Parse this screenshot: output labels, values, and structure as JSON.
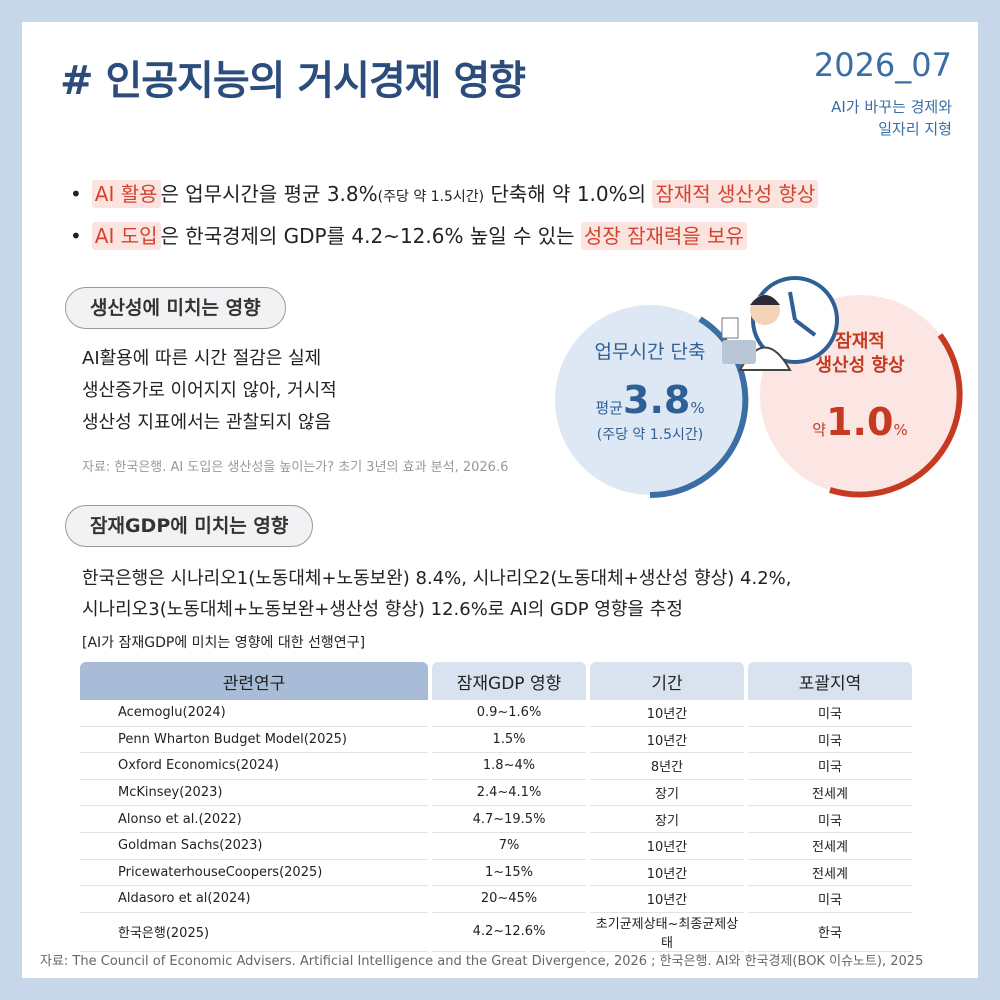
{
  "header": {
    "title": "# 인공지능의 거시경제 영향",
    "issue": "2026_07",
    "subtitle": [
      "AI가 바꾸는 경제와",
      "일자리 지형"
    ]
  },
  "summary": [
    [
      {
        "text": "AI 활용",
        "style": "highlight"
      },
      {
        "text": "은 업무시간을 평균 3.8%",
        "style": "plain"
      },
      {
        "text": "(주당 약 1.5시간)",
        "style": "small"
      },
      {
        "text": " 단축해 약 1.0%의 ",
        "style": "plain"
      },
      {
        "text": "잠재적 생산성 향상",
        "style": "highlight"
      }
    ],
    [
      {
        "text": "AI 도입",
        "style": "highlight"
      },
      {
        "text": "은 한국경제의 GDP를 4.2~12.6% 높일 수 있는 ",
        "style": "plain"
      },
      {
        "text": "성장 잠재력을 보유",
        "style": "highlight"
      }
    ]
  ],
  "productivity": {
    "label": "생산성에 미치는 영향",
    "body": [
      "AI활용에 따른 시간 절감은 실제",
      "생산증가로 이어지지 않아, 거시적",
      "생산성 지표에서는 관찰되지 않음"
    ],
    "source": "자료: 한국은행. AI 도입은 생산성을 높이는가? 초기 3년의 효과 분석, 2026.6"
  },
  "badges": [
    {
      "title": [
        "업무시간 단축"
      ],
      "prefix": "평균",
      "value": "3.8",
      "unit": "%",
      "note": "(주당 약 1.5시간)"
    },
    {
      "title": [
        "잠재적",
        "생산성 향상"
      ],
      "prefix": "약",
      "value": "1.0",
      "unit": "%"
    }
  ],
  "gdp": {
    "label": "잠재GDP에 미치는 영향",
    "body": [
      "한국은행은 시나리오1(노동대체+노동보완) 8.4%, 시나리오2(노동대체+생산성 향상) 4.2%,",
      "시나리오3(노동대체+노동보완+생산성 향상) 12.6%로 AI의 GDP 영향을 추정"
    ],
    "caption": "[AI가 잠재GDP에 미치는 영향에 대한 선행연구]"
  },
  "table": {
    "headers": [
      "관련연구",
      "잠재GDP 영향",
      "기간",
      "포괄지역"
    ],
    "rows": [
      [
        "Acemoglu(2024)",
        "0.9~1.6%",
        "10년간",
        "미국"
      ],
      [
        "Penn Wharton Budget Model(2025)",
        "1.5%",
        "10년간",
        "미국"
      ],
      [
        "Oxford Economics(2024)",
        "1.8~4%",
        "8년간",
        "미국"
      ],
      [
        "McKinsey(2023)",
        "2.4~4.1%",
        "장기",
        "전세계"
      ],
      [
        "Alonso et al.(2022)",
        "4.7~19.5%",
        "장기",
        "미국"
      ],
      [
        "Goldman Sachs(2023)",
        "7%",
        "10년간",
        "전세계"
      ],
      [
        "PricewaterhouseCoopers(2025)",
        "1~15%",
        "10년간",
        "전세계"
      ],
      [
        "Aldasoro et al(2024)",
        "20~45%",
        "10년간",
        "미국"
      ],
      [
        "한국은행(2025)",
        "4.2~12.6%",
        "초기균제상태~최종균제상태",
        "한국"
      ]
    ]
  },
  "footer": "자료: The Council of Economic Advisers. Artificial Intelligence and the Great Divergence, 2026 ; 한국은행. AI와 한국경제(BOK 이슈노트), 2025"
}
